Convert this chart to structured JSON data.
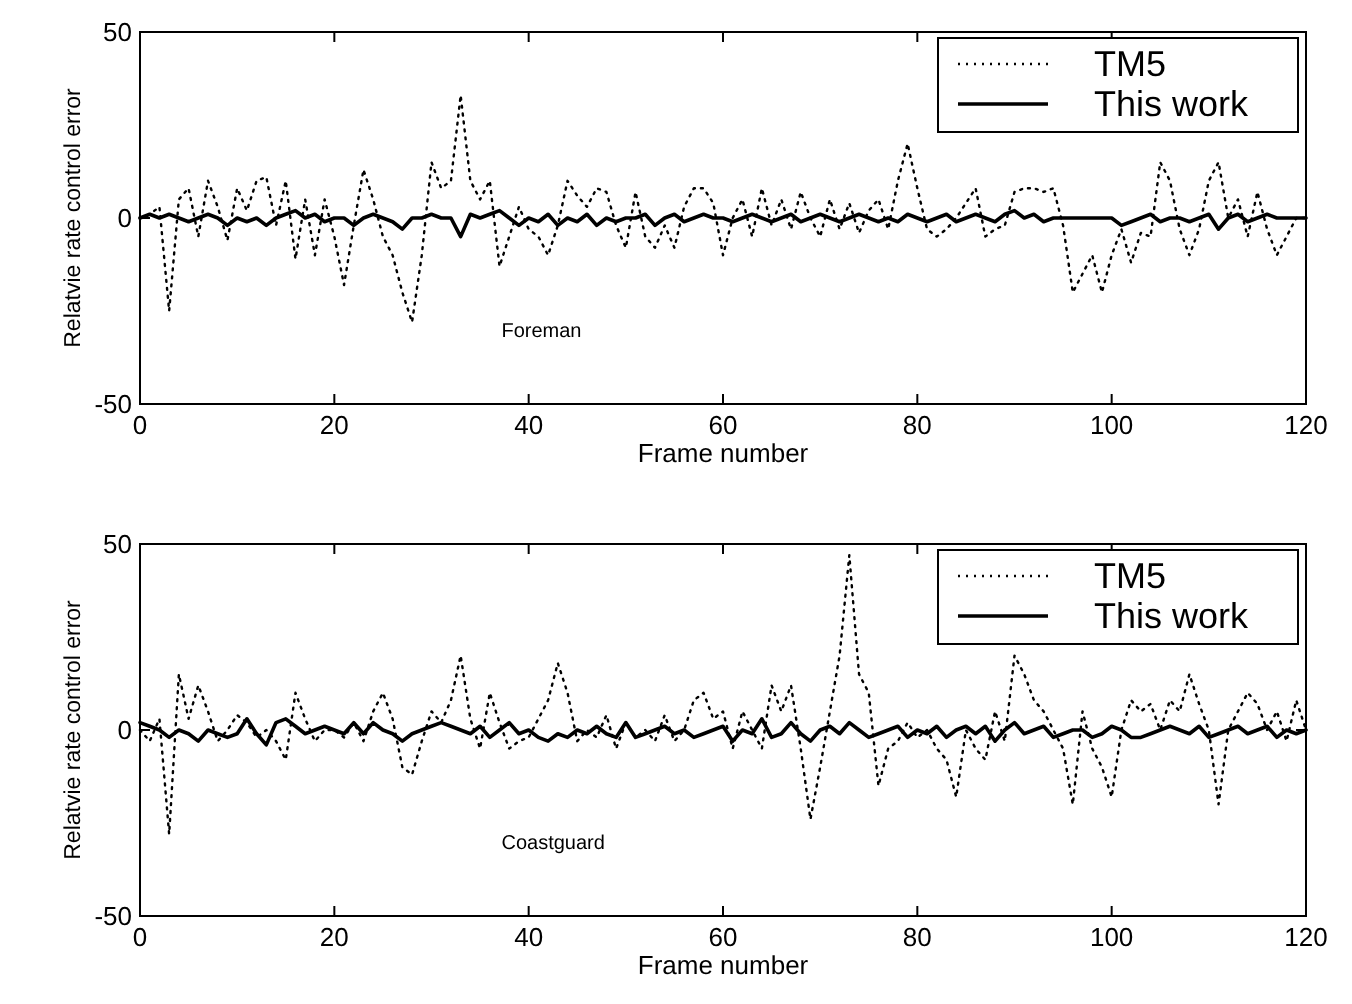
{
  "chart_data": [
    {
      "type": "line",
      "xlabel": "Frame number",
      "ylabel": "Relatvie rate control error",
      "annotations": [
        "Foreman"
      ],
      "xlim": [
        0,
        120
      ],
      "ylim": [
        -50,
        50
      ],
      "xticks": [
        0,
        20,
        40,
        60,
        80,
        100,
        120
      ],
      "yticks": [
        -50,
        0,
        50
      ],
      "legend": "top right",
      "grid": false,
      "x": [
        0,
        1,
        2,
        3,
        4,
        5,
        6,
        7,
        8,
        9,
        10,
        11,
        12,
        13,
        14,
        15,
        16,
        17,
        18,
        19,
        20,
        21,
        22,
        23,
        24,
        25,
        26,
        27,
        28,
        29,
        30,
        31,
        32,
        33,
        34,
        35,
        36,
        37,
        38,
        39,
        40,
        41,
        42,
        43,
        44,
        45,
        46,
        47,
        48,
        49,
        50,
        51,
        52,
        53,
        54,
        55,
        56,
        57,
        58,
        59,
        60,
        61,
        62,
        63,
        64,
        65,
        66,
        67,
        68,
        69,
        70,
        71,
        72,
        73,
        74,
        75,
        76,
        77,
        78,
        79,
        80,
        81,
        82,
        83,
        84,
        85,
        86,
        87,
        88,
        89,
        90,
        91,
        92,
        93,
        94,
        95,
        96,
        97,
        98,
        99,
        100,
        101,
        102,
        103,
        104,
        105,
        106,
        107,
        108,
        109,
        110,
        111,
        112,
        113,
        114,
        115,
        116,
        117,
        118,
        119,
        120
      ],
      "series": [
        {
          "name": "TM5",
          "color": "#000000",
          "line_style": "dotted",
          "values": [
            0,
            1,
            3,
            -25,
            5,
            8,
            -5,
            10,
            3,
            -6,
            8,
            2,
            10,
            11,
            -2,
            10,
            -11,
            5,
            -10,
            5,
            -5,
            -18,
            -2,
            13,
            5,
            -5,
            -10,
            -20,
            -28,
            -10,
            15,
            8,
            10,
            33,
            10,
            5,
            10,
            -13,
            -5,
            3,
            -3,
            -5,
            -10,
            -2,
            10,
            6,
            3,
            8,
            7,
            -2,
            -8,
            7,
            -5,
            -8,
            -2,
            -8,
            3,
            8,
            8,
            4,
            -10,
            0,
            5,
            -5,
            8,
            -2,
            5,
            -3,
            7,
            0,
            -5,
            5,
            -3,
            4,
            -4,
            2,
            5,
            -3,
            10,
            20,
            8,
            -3,
            -5,
            -3,
            0,
            4,
            8,
            -5,
            -3,
            -2,
            7,
            8,
            8,
            7,
            8,
            -2,
            -20,
            -15,
            -10,
            -20,
            -10,
            -3,
            -12,
            -4,
            -5,
            15,
            10,
            -3,
            -10,
            -3,
            10,
            15,
            0,
            5,
            -5,
            7,
            -3,
            -10,
            -5,
            0,
            0
          ]
        },
        {
          "name": "This work",
          "color": "#000000",
          "line_style": "solid",
          "values": [
            0,
            1,
            0,
            1,
            0,
            -1,
            0,
            1,
            0,
            -2,
            0,
            -1,
            0,
            -2,
            0,
            1,
            2,
            0,
            1,
            -1,
            0,
            0,
            -2,
            0,
            1,
            0,
            -1,
            -3,
            0,
            0,
            1,
            0,
            0,
            -5,
            1,
            0,
            1,
            2,
            0,
            -2,
            0,
            -1,
            1,
            -2,
            0,
            -1,
            1,
            -2,
            0,
            -1,
            0,
            0,
            1,
            -2,
            0,
            1,
            -1,
            0,
            1,
            0,
            0,
            -1,
            0,
            1,
            0,
            -1,
            0,
            1,
            -1,
            0,
            1,
            0,
            -1,
            0,
            1,
            0,
            -1,
            0,
            -1,
            1,
            0,
            -1,
            0,
            1,
            -1,
            0,
            1,
            0,
            -1,
            1,
            2,
            0,
            1,
            -1,
            0,
            0,
            0,
            0,
            0,
            0,
            0,
            -2,
            -1,
            0,
            1,
            -1,
            0,
            0,
            -1,
            0,
            1,
            -3,
            0,
            1,
            -1,
            0,
            1,
            0,
            0,
            0,
            0
          ]
        }
      ]
    },
    {
      "type": "line",
      "xlabel": "Frame number",
      "ylabel": "Relatvie rate control error",
      "annotations": [
        "Coastguard"
      ],
      "xlim": [
        0,
        120
      ],
      "ylim": [
        -50,
        50
      ],
      "xticks": [
        0,
        20,
        40,
        60,
        80,
        100,
        120
      ],
      "yticks": [
        -50,
        0,
        50
      ],
      "legend": "top right",
      "grid": false,
      "x": [
        0,
        1,
        2,
        3,
        4,
        5,
        6,
        7,
        8,
        9,
        10,
        11,
        12,
        13,
        14,
        15,
        16,
        17,
        18,
        19,
        20,
        21,
        22,
        23,
        24,
        25,
        26,
        27,
        28,
        29,
        30,
        31,
        32,
        33,
        34,
        35,
        36,
        37,
        38,
        39,
        40,
        41,
        42,
        43,
        44,
        45,
        46,
        47,
        48,
        49,
        50,
        51,
        52,
        53,
        54,
        55,
        56,
        57,
        58,
        59,
        60,
        61,
        62,
        63,
        64,
        65,
        66,
        67,
        68,
        69,
        70,
        71,
        72,
        73,
        74,
        75,
        76,
        77,
        78,
        79,
        80,
        81,
        82,
        83,
        84,
        85,
        86,
        87,
        88,
        89,
        90,
        91,
        92,
        93,
        94,
        95,
        96,
        97,
        98,
        99,
        100,
        101,
        102,
        103,
        104,
        105,
        106,
        107,
        108,
        109,
        110,
        111,
        112,
        113,
        114,
        115,
        116,
        117,
        118,
        119,
        120
      ],
      "series": [
        {
          "name": "TM5",
          "color": "#000000",
          "line_style": "dotted",
          "values": [
            0,
            -3,
            3,
            -28,
            15,
            3,
            12,
            5,
            -3,
            0,
            4,
            2,
            -2,
            0,
            -3,
            -8,
            10,
            3,
            -3,
            0,
            0,
            -2,
            2,
            -3,
            5,
            10,
            3,
            -10,
            -12,
            -3,
            5,
            2,
            8,
            20,
            3,
            -5,
            10,
            2,
            -5,
            -3,
            -2,
            3,
            8,
            18,
            10,
            -3,
            0,
            -2,
            4,
            -5,
            2,
            -2,
            0,
            -3,
            4,
            -3,
            0,
            8,
            10,
            3,
            5,
            -5,
            5,
            0,
            -5,
            12,
            5,
            12,
            -5,
            -24,
            -10,
            5,
            20,
            47,
            15,
            10,
            -15,
            -5,
            -3,
            2,
            -2,
            0,
            -5,
            -8,
            -18,
            0,
            -5,
            -8,
            5,
            -3,
            20,
            15,
            8,
            5,
            0,
            -5,
            -20,
            5,
            -5,
            -10,
            -18,
            0,
            8,
            5,
            7,
            0,
            8,
            5,
            15,
            7,
            0,
            -20,
            0,
            5,
            10,
            7,
            0,
            5,
            -3,
            8,
            0
          ]
        },
        {
          "name": "This work",
          "color": "#000000",
          "line_style": "solid",
          "values": [
            2,
            1,
            0,
            -2,
            0,
            -1,
            -3,
            0,
            -1,
            -2,
            -1,
            3,
            -1,
            -4,
            2,
            3,
            1,
            -1,
            0,
            1,
            0,
            -1,
            2,
            -1,
            2,
            0,
            -1,
            -3,
            -1,
            0,
            1,
            2,
            1,
            0,
            -1,
            1,
            -2,
            0,
            2,
            -1,
            0,
            -2,
            -3,
            -1,
            -2,
            0,
            -1,
            1,
            -1,
            -2,
            2,
            -2,
            -1,
            0,
            1,
            -1,
            0,
            -2,
            -1,
            0,
            1,
            -3,
            0,
            -1,
            3,
            -2,
            -1,
            2,
            -1,
            -3,
            0,
            1,
            -1,
            2,
            0,
            -2,
            -1,
            0,
            1,
            -2,
            0,
            -1,
            1,
            -2,
            0,
            1,
            -1,
            1,
            -3,
            0,
            2,
            -1,
            0,
            1,
            -2,
            -1,
            0,
            0,
            -2,
            -1,
            1,
            0,
            -2,
            -2,
            -1,
            0,
            1,
            0,
            -1,
            1,
            -2,
            -1,
            0,
            1,
            -1,
            0,
            1,
            -2,
            0,
            -1,
            0
          ]
        }
      ]
    }
  ]
}
